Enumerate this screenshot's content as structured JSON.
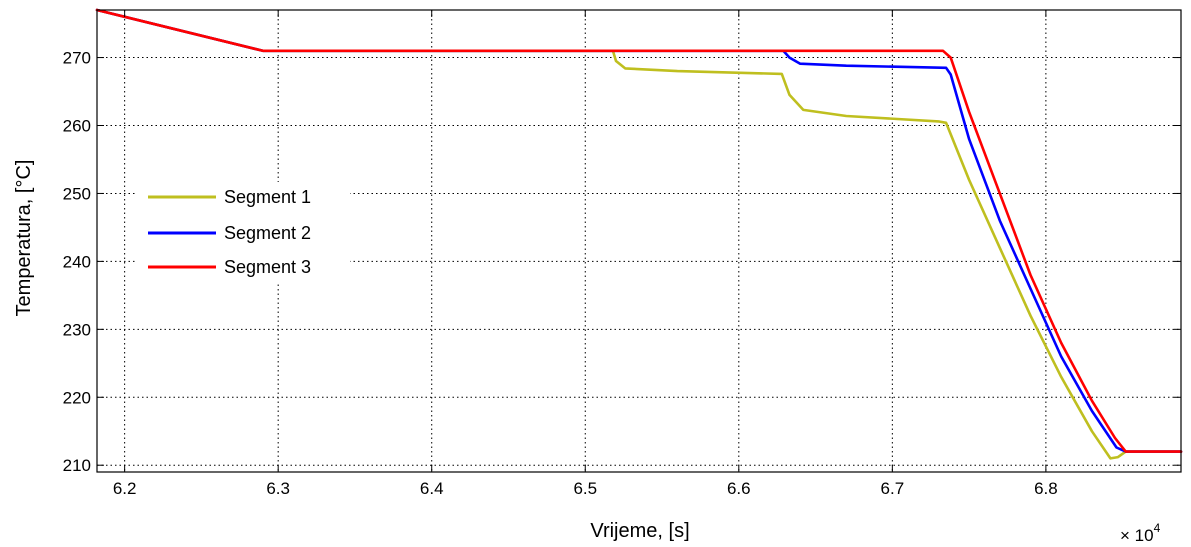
{
  "chart_data": {
    "type": "line",
    "xlabel": "Vrijeme, [s]",
    "ylabel": "Temperatura, [°C]",
    "x_exponent_label": "× 10",
    "x_exponent_power": "4",
    "xlim": [
      61820,
      68880
    ],
    "ylim": [
      209,
      277
    ],
    "x_ticks": [
      {
        "value": 62000,
        "label": "6.2"
      },
      {
        "value": 63000,
        "label": "6.3"
      },
      {
        "value": 64000,
        "label": "6.4"
      },
      {
        "value": 65000,
        "label": "6.5"
      },
      {
        "value": 66000,
        "label": "6.6"
      },
      {
        "value": 67000,
        "label": "6.7"
      },
      {
        "value": 68000,
        "label": "6.8"
      }
    ],
    "y_ticks": [
      {
        "value": 210,
        "label": "210"
      },
      {
        "value": 220,
        "label": "220"
      },
      {
        "value": 230,
        "label": "230"
      },
      {
        "value": 240,
        "label": "240"
      },
      {
        "value": 250,
        "label": "250"
      },
      {
        "value": 260,
        "label": "260"
      },
      {
        "value": 270,
        "label": "270"
      }
    ],
    "grid": true,
    "legend_position": "middle-left",
    "series": [
      {
        "name": "Segment 1",
        "color": "#BFBF1F",
        "points": [
          [
            61820,
            277
          ],
          [
            62900,
            271
          ],
          [
            65180,
            271
          ],
          [
            65200,
            269.5
          ],
          [
            65260,
            268.4
          ],
          [
            65600,
            268.0
          ],
          [
            66280,
            267.6
          ],
          [
            66330,
            264.5
          ],
          [
            66420,
            262.3
          ],
          [
            66700,
            261.4
          ],
          [
            67300,
            260.6
          ],
          [
            67350,
            260.4
          ],
          [
            67500,
            252
          ],
          [
            67700,
            242
          ],
          [
            67900,
            232
          ],
          [
            68100,
            223
          ],
          [
            68300,
            215
          ],
          [
            68420,
            211
          ],
          [
            68470,
            211.2
          ],
          [
            68520,
            212
          ],
          [
            68880,
            212
          ]
        ]
      },
      {
        "name": "Segment 2",
        "color": "#0000FF",
        "points": [
          [
            61820,
            277
          ],
          [
            62900,
            271
          ],
          [
            66290,
            271
          ],
          [
            66330,
            270
          ],
          [
            66400,
            269.1
          ],
          [
            66700,
            268.8
          ],
          [
            67350,
            268.5
          ],
          [
            67380,
            267.5
          ],
          [
            67500,
            258
          ],
          [
            67700,
            246
          ],
          [
            67900,
            236
          ],
          [
            68100,
            226
          ],
          [
            68300,
            218
          ],
          [
            68460,
            212.6
          ],
          [
            68520,
            212
          ],
          [
            68880,
            212
          ]
        ]
      },
      {
        "name": "Segment 3",
        "color": "#FF0000",
        "points": [
          [
            61820,
            277
          ],
          [
            62900,
            271
          ],
          [
            67330,
            271
          ],
          [
            67380,
            270
          ],
          [
            67500,
            262
          ],
          [
            67700,
            250
          ],
          [
            67900,
            238
          ],
          [
            68100,
            228
          ],
          [
            68300,
            219.5
          ],
          [
            68450,
            214
          ],
          [
            68520,
            212
          ],
          [
            68880,
            212
          ]
        ]
      }
    ]
  }
}
